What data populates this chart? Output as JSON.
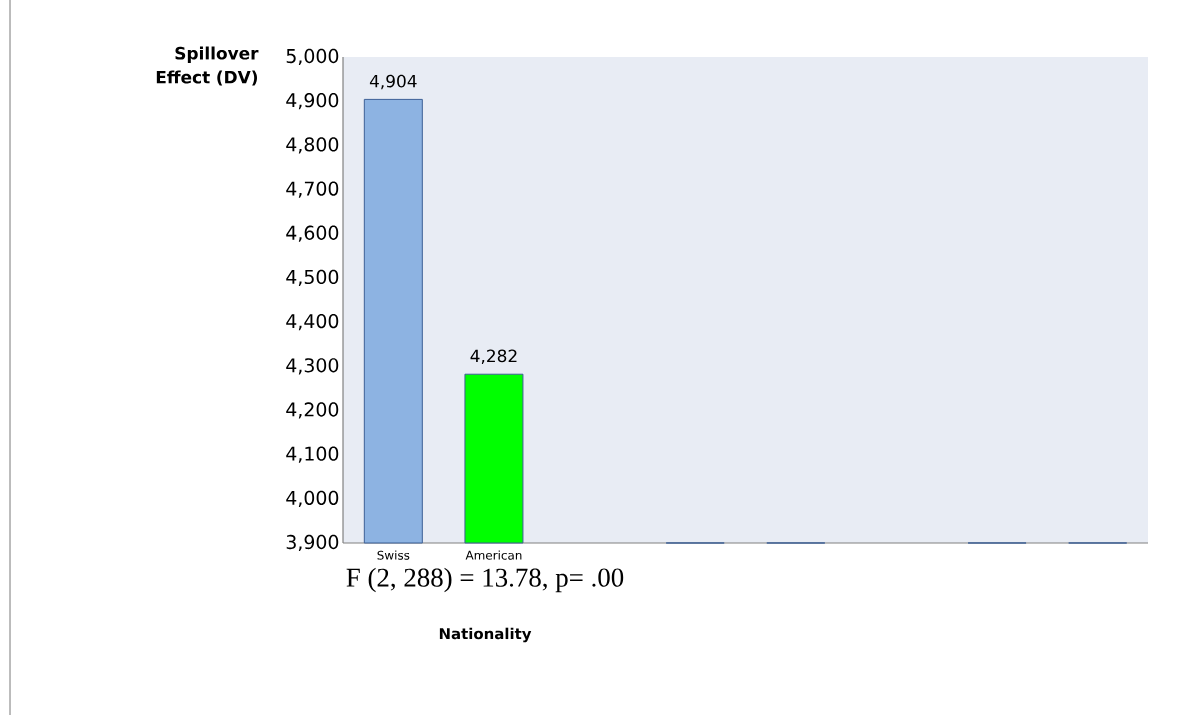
{
  "chart_data": {
    "type": "bar",
    "ylabel": "Spillover Effect (DV)",
    "xlabel": "Nationality",
    "categories": [
      "Swiss",
      "American",
      null,
      null,
      null,
      null,
      null,
      null
    ],
    "values": [
      4904,
      4282,
      null,
      3900,
      3900,
      null,
      3900,
      3900
    ],
    "colors": [
      "#8db3e2",
      "#00ff00",
      "#8db3e2",
      "#8db3e2",
      "#8db3e2",
      "#8db3e2",
      "#8db3e2",
      "#8db3e2"
    ],
    "value_labels": [
      "4,904",
      "4,282",
      null,
      null,
      null,
      null,
      null,
      null
    ],
    "ylim": [
      3900,
      5000
    ],
    "yticks": [
      {
        "value": 3900,
        "label": "3,900"
      },
      {
        "value": 4000,
        "label": "4,000"
      },
      {
        "value": 4100,
        "label": "4,100"
      },
      {
        "value": 4200,
        "label": "4,200"
      },
      {
        "value": 4300,
        "label": "4,300"
      },
      {
        "value": 4400,
        "label": "4,400"
      },
      {
        "value": 4500,
        "label": "4,500"
      },
      {
        "value": 4600,
        "label": "4,600"
      },
      {
        "value": 4700,
        "label": "4,700"
      },
      {
        "value": 4800,
        "label": "4,800"
      },
      {
        "value": 4900,
        "label": "4,900"
      },
      {
        "value": 5000,
        "label": "5,000"
      }
    ],
    "annotations": [
      "F (2, 288) = 13.78, p= .00"
    ]
  }
}
